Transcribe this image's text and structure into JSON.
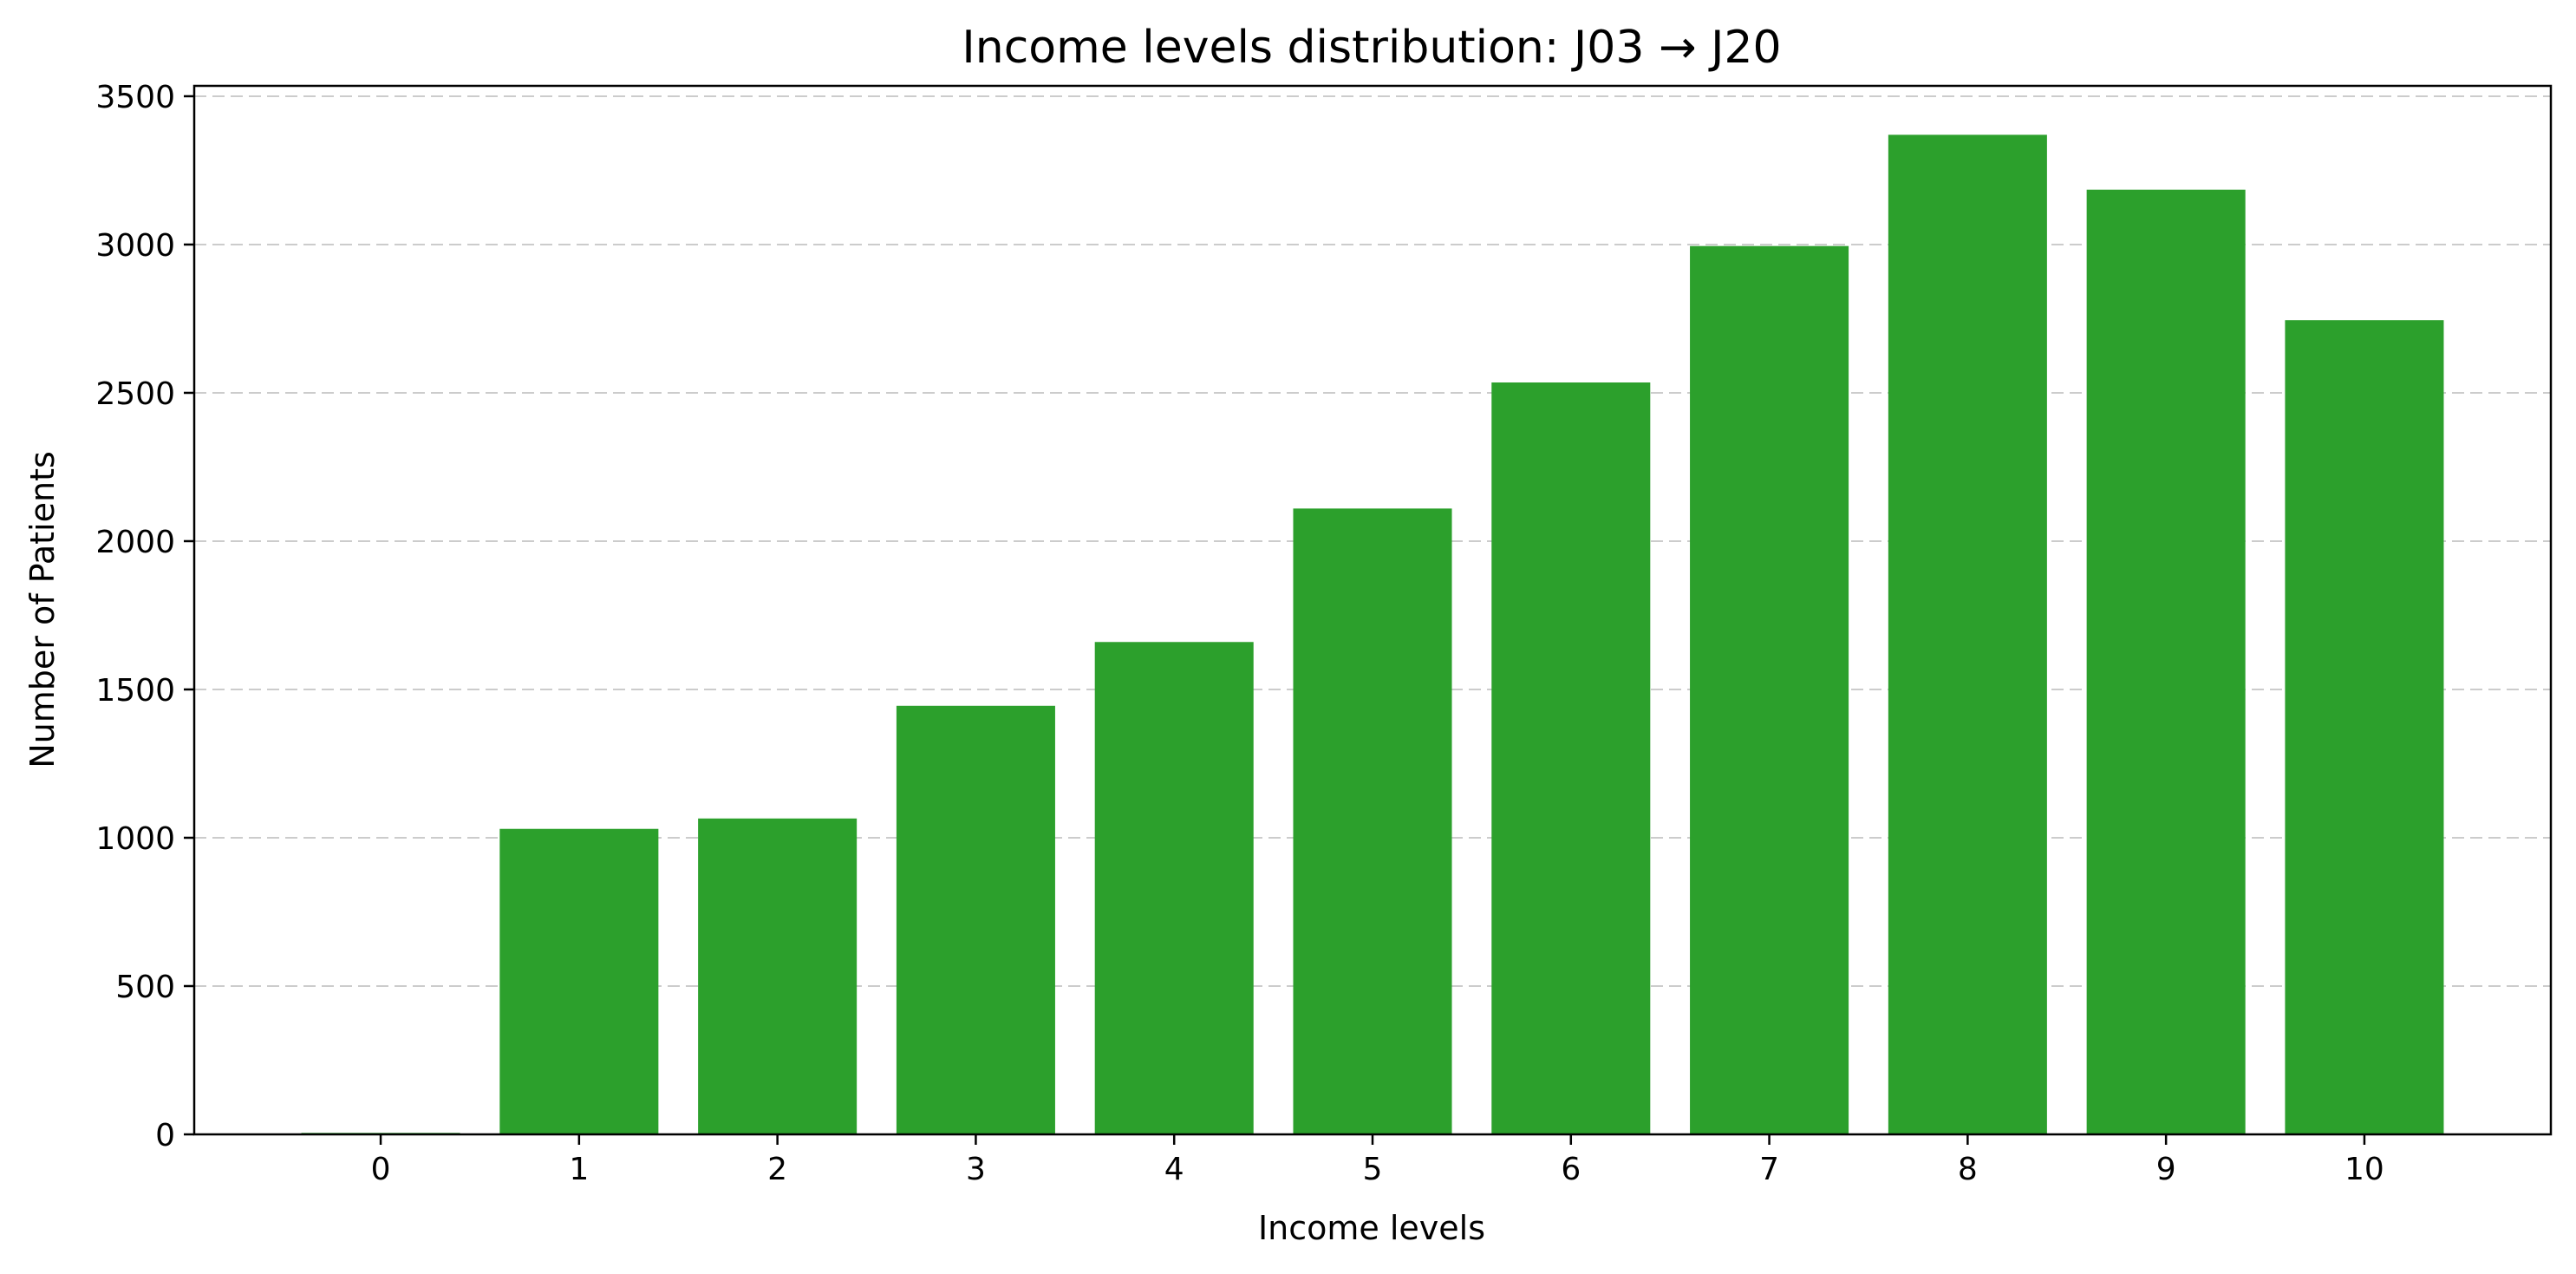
{
  "chart_data": {
    "type": "bar",
    "title": "Income levels distribution: J03 → J20",
    "xlabel": "Income levels",
    "ylabel": "Number of Patients",
    "categories": [
      "0",
      "1",
      "2",
      "3",
      "4",
      "5",
      "6",
      "7",
      "8",
      "9",
      "10"
    ],
    "values": [
      5,
      1030,
      1065,
      1445,
      1660,
      2110,
      2535,
      2995,
      3370,
      3185,
      2745
    ],
    "ylim": [
      0,
      3535
    ],
    "yticks": [
      "0",
      "500",
      "1000",
      "1500",
      "2000",
      "2500",
      "3000",
      "3500"
    ],
    "grid": "y",
    "bar_color": "#2ca02c"
  }
}
